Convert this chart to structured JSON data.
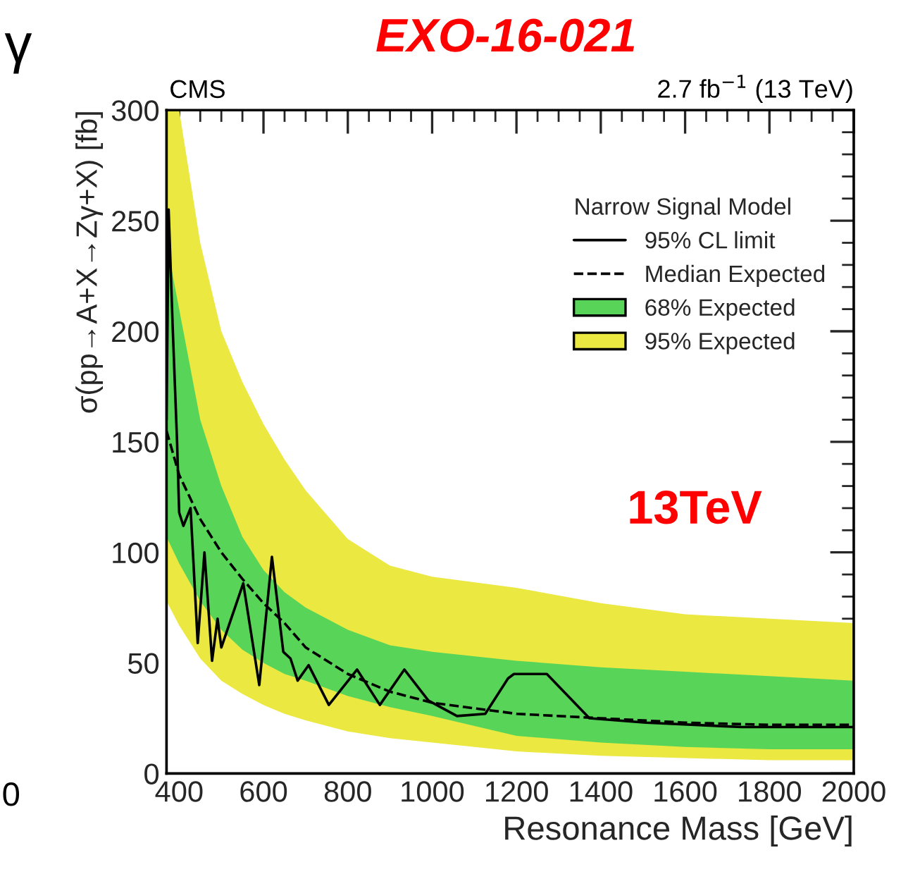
{
  "chart_data": {
    "type": "line",
    "title": "EXO-16-021",
    "xlabel": "Resonance Mass [GeV]",
    "ylabel": "σ(pp→A+X→Zγ+X) [fb]",
    "legend_title": "Narrow Signal Model",
    "annotations": [
      "CMS",
      "2.7 fb$^{−1}$ (13 TeV)",
      "13TeV",
      "γ",
      "0"
    ],
    "xlim": [
      370,
      2000
    ],
    "ylim": [
      0,
      300
    ],
    "xticks": [
      400,
      600,
      800,
      1000,
      1200,
      1400,
      1600,
      1800,
      2000
    ],
    "yticks": [
      0,
      50,
      100,
      150,
      200,
      250,
      300
    ],
    "grid": false,
    "legend": "top right",
    "series": [
      {
        "name": "95% Expected",
        "type": "area",
        "color": "#ebe842",
        "x": [
          370,
          400,
          450,
          500,
          550,
          600,
          650,
          700,
          800,
          900,
          1000,
          1200,
          1400,
          1600,
          1800,
          2000
        ],
        "values": [
          null,
          null,
          null,
          null,
          null,
          null,
          null,
          null,
          null,
          null,
          null,
          null,
          null,
          null,
          null,
          null
        ],
        "lower": [
          78,
          67,
          52,
          42,
          36,
          31,
          27,
          24,
          19,
          16,
          14,
          10,
          8,
          7,
          6,
          6
        ],
        "upper": [
          300,
          300,
          240,
          200,
          177,
          158,
          142,
          128,
          106,
          94,
          89,
          84,
          77,
          72,
          70,
          68
        ]
      },
      {
        "name": "68% Expected",
        "type": "area",
        "color": "#58d558",
        "x": [
          370,
          400,
          450,
          500,
          550,
          600,
          650,
          700,
          800,
          900,
          1000,
          1200,
          1400,
          1600,
          1800,
          2000
        ],
        "values": [
          null,
          null,
          null,
          null,
          null,
          null,
          null,
          null,
          null,
          null,
          null,
          null,
          null,
          null,
          null,
          null
        ],
        "lower": [
          107,
          95,
          78,
          65,
          56,
          50,
          45,
          42,
          35,
          30,
          26,
          17,
          14,
          12,
          11,
          11
        ],
        "upper": [
          240,
          210,
          160,
          130,
          107,
          92,
          82,
          75,
          65,
          58,
          55,
          51,
          48,
          46,
          44,
          42
        ]
      },
      {
        "name": "Median Expected",
        "line_style": "dashed",
        "color": "#000000",
        "x": [
          370,
          400,
          450,
          500,
          550,
          600,
          650,
          700,
          800,
          900,
          1000,
          1200,
          1400,
          1600,
          1800,
          2000
        ],
        "values": [
          155,
          135,
          115,
          100,
          88,
          77,
          68,
          57,
          45,
          37,
          32,
          27,
          25,
          23,
          22,
          22
        ]
      },
      {
        "name": "95% CL limit",
        "line_style": "solid",
        "color": "#000000",
        "x": [
          370,
          375,
          385,
          395,
          400,
          410,
          427,
          444,
          460,
          478,
          491,
          500,
          552,
          590,
          620,
          647,
          664,
          681,
          707,
          755,
          822,
          876,
          934,
          991,
          1059,
          1126,
          1180,
          1194,
          1272,
          1373,
          1507,
          1734,
          2000
        ],
        "values": [
          160,
          255,
          200,
          150,
          118,
          112,
          120,
          59,
          100,
          51,
          70,
          57,
          86,
          40,
          98,
          55,
          52,
          42,
          49,
          31,
          47,
          31,
          47,
          33,
          26,
          27,
          43,
          45,
          45,
          25,
          23,
          21,
          21
        ]
      }
    ]
  }
}
